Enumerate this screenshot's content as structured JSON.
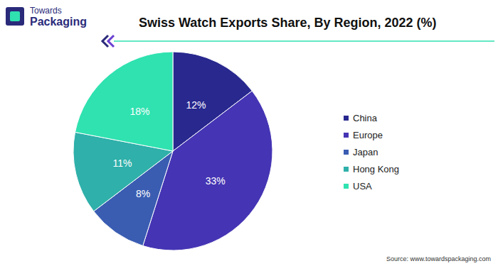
{
  "chart_data": {
    "type": "pie",
    "title": "Swiss Watch Exports Share, By Region, 2022 (%)",
    "categories": [
      "China",
      "Europe",
      "Japan",
      "Hong Kong",
      "USA"
    ],
    "values": [
      12,
      33,
      8,
      11,
      18
    ],
    "value_labels": [
      "12%",
      "33%",
      "8%",
      "11%",
      "18%"
    ],
    "colors": [
      "#28288f",
      "#4535b4",
      "#3a5db2",
      "#2fb0aa",
      "#2fe2b0"
    ],
    "data_labels": true,
    "legend": "right",
    "annotations": [
      "Source: www.towardspackaging.com"
    ]
  },
  "logo": [
    "Towards",
    "Packaging"
  ]
}
